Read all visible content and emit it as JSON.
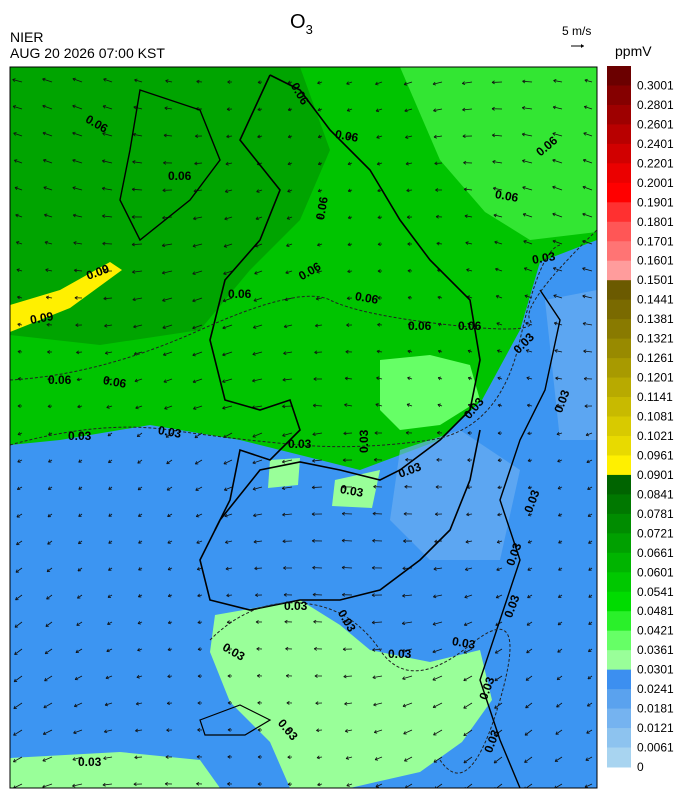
{
  "header": {
    "title": {
      "text": "O",
      "subscript": "3"
    },
    "agency": "NIER",
    "timestamp": "AUG 20 2026 07:00 KST",
    "wind_scale": "5 m/s",
    "unit": "ppmV"
  },
  "colorbar": [
    {
      "label": "0.3001",
      "color": "#6b0000"
    },
    {
      "label": "0.2801",
      "color": "#850000"
    },
    {
      "label": "0.2601",
      "color": "#9e0000"
    },
    {
      "label": "0.2401",
      "color": "#b80000"
    },
    {
      "label": "0.2201",
      "color": "#d10000"
    },
    {
      "label": "0.2001",
      "color": "#eb0000"
    },
    {
      "label": "0.1901",
      "color": "#ff0000"
    },
    {
      "label": "0.1801",
      "color": "#ff3030"
    },
    {
      "label": "0.1701",
      "color": "#ff5656"
    },
    {
      "label": "0.1601",
      "color": "#ff7474"
    },
    {
      "label": "0.1501",
      "color": "#ff9c9c"
    },
    {
      "label": "0.1441",
      "color": "#6b5a00"
    },
    {
      "label": "0.1381",
      "color": "#7a6a00"
    },
    {
      "label": "0.1321",
      "color": "#897a00"
    },
    {
      "label": "0.1261",
      "color": "#988a00"
    },
    {
      "label": "0.1201",
      "color": "#a89a00"
    },
    {
      "label": "0.1141",
      "color": "#b8aa00"
    },
    {
      "label": "0.1081",
      "color": "#c8ba00"
    },
    {
      "label": "0.1021",
      "color": "#d8ca00"
    },
    {
      "label": "0.0961",
      "color": "#e8da00"
    },
    {
      "label": "0.0901",
      "color": "#fff000"
    },
    {
      "label": "0.0841",
      "color": "#006400"
    },
    {
      "label": "0.0781",
      "color": "#007800"
    },
    {
      "label": "0.0721",
      "color": "#008c00"
    },
    {
      "label": "0.0661",
      "color": "#00a000"
    },
    {
      "label": "0.0601",
      "color": "#00b400"
    },
    {
      "label": "0.0541",
      "color": "#00c800"
    },
    {
      "label": "0.0481",
      "color": "#00dc00"
    },
    {
      "label": "0.0421",
      "color": "#2af02a"
    },
    {
      "label": "0.0361",
      "color": "#66ff66"
    },
    {
      "label": "0.0301",
      "color": "#99ff99"
    },
    {
      "label": "0.0241",
      "color": "#3c8ff0"
    },
    {
      "label": "0.0181",
      "color": "#5aa2ee"
    },
    {
      "label": "0.0121",
      "color": "#75b3f0"
    },
    {
      "label": "0.0061",
      "color": "#8dc3ef"
    },
    {
      "label": "0",
      "color": "#a8d4f0"
    }
  ],
  "contour_labels": [
    "0.06",
    "0.06",
    "0.06",
    "0.06",
    "0.06",
    "0.06",
    "0.06",
    "0.06",
    "0.06",
    "0.06",
    "0.06",
    "0.06",
    "0.06",
    "0.06",
    "0.09",
    "0.09",
    "0.03",
    "0.03",
    "0.03",
    "0.03",
    "0.03",
    "0.03",
    "0.03",
    "0.03",
    "0.03",
    "0.03",
    "0.03",
    "0.03",
    "0.03",
    "0.03",
    "0.03",
    "0.03",
    "0.03",
    "0.03",
    "0.03",
    "0.03",
    "0.03",
    "0.03"
  ]
}
